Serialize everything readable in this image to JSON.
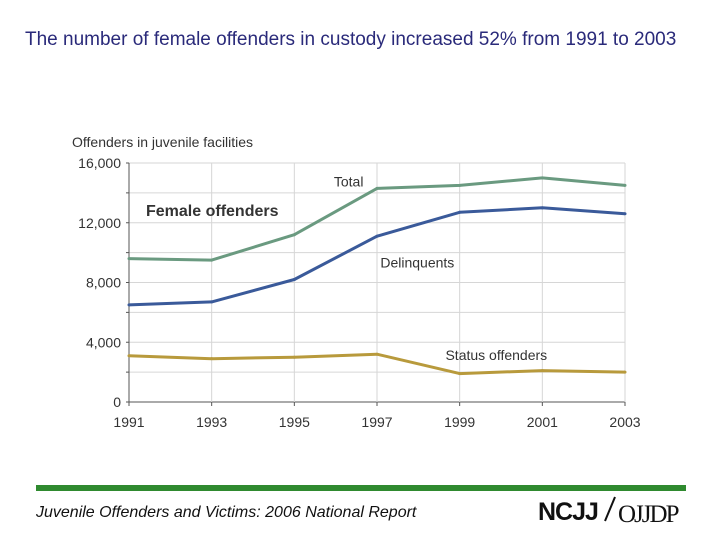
{
  "slide": {
    "title": "The number of female offenders in custody increased 52% from 1991 to 2003"
  },
  "footer": {
    "report_title": "Juvenile Offenders and Victims: 2006 National Report",
    "logo_left": "NCJJ",
    "logo_right": "OJJDP",
    "rule_color": "#2f8a2f"
  },
  "chart_data": {
    "type": "line",
    "title": "Female offenders",
    "ylabel": "Offenders in juvenile facilities",
    "xlabel": "",
    "x": [
      1991,
      1993,
      1995,
      1997,
      1999,
      2001,
      2003
    ],
    "x_tick_labels": [
      "1991",
      "1993",
      "1995",
      "1997",
      "1999",
      "2001",
      "2003"
    ],
    "ylim": [
      0,
      16000
    ],
    "y_ticks": [
      0,
      4000,
      8000,
      12000,
      16000
    ],
    "y_tick_labels": [
      "0",
      "4,000",
      "8,000",
      "12,000",
      "16,000"
    ],
    "grid": true,
    "series": [
      {
        "name": "Total",
        "color": "#6a9a80",
        "values": [
          9600,
          9500,
          11200,
          14300,
          14500,
          15000,
          14500
        ]
      },
      {
        "name": "Delinquents",
        "color": "#3a5a9a",
        "values": [
          6500,
          6700,
          8200,
          11100,
          12700,
          13000,
          12600
        ]
      },
      {
        "name": "Status offenders",
        "color": "#b89a3c",
        "values": [
          3100,
          2900,
          3000,
          3200,
          1900,
          2100,
          2000
        ]
      }
    ]
  }
}
